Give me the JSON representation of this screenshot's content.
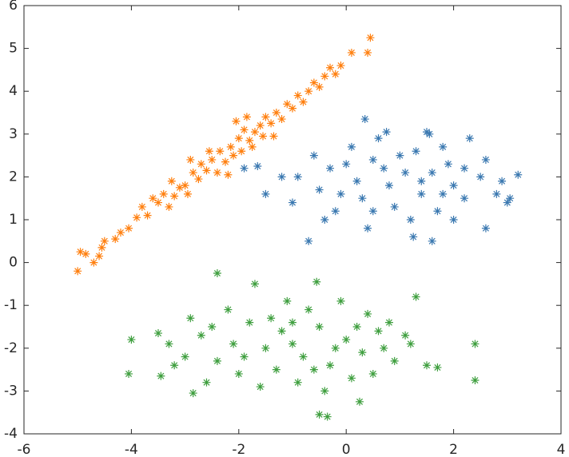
{
  "chart_data": {
    "type": "scatter",
    "xlim": [
      -6,
      4
    ],
    "ylim": [
      -4,
      6
    ],
    "xticks": [
      -6,
      -4,
      -2,
      0,
      2,
      4
    ],
    "yticks": [
      -4,
      -3,
      -2,
      -1,
      0,
      1,
      2,
      3,
      4,
      5,
      6
    ],
    "marker": "asterisk",
    "series": [
      {
        "color": "#3a78b0",
        "x": [
          0.5,
          0.8,
          1.1,
          1.4,
          0.2,
          -0.3,
          -0.5,
          1.9,
          2.2,
          2.5,
          1.7,
          0.9,
          0.3,
          -0.2,
          -0.6,
          -0.9,
          0.1,
          0.6,
          1.3,
          1.0,
          1.6,
          2.0,
          2.8,
          3.0,
          2.6,
          2.3,
          1.8,
          -1.2,
          -1.5,
          -1.9,
          -1.65,
          -0.7,
          0.35,
          3.2,
          2.6,
          1.6,
          1.25,
          0.4,
          1.5,
          0.75,
          1.55,
          -0.4,
          0.0,
          0.5,
          1.2,
          2.0,
          2.9,
          3.05,
          0.7,
          1.4,
          -0.1,
          -1.0,
          2.2,
          1.8
        ],
        "y": [
          2.4,
          1.8,
          2.1,
          1.6,
          1.9,
          2.2,
          1.7,
          2.3,
          1.5,
          2.0,
          1.2,
          1.3,
          1.5,
          1.2,
          2.5,
          2.0,
          2.7,
          2.9,
          2.6,
          2.5,
          2.1,
          1.8,
          1.6,
          1.4,
          2.4,
          2.9,
          2.7,
          2.0,
          1.6,
          2.2,
          2.25,
          0.5,
          3.35,
          2.05,
          0.8,
          0.5,
          0.6,
          0.8,
          3.05,
          3.05,
          3.0,
          1.0,
          2.3,
          1.2,
          1.0,
          1.0,
          1.9,
          1.5,
          2.2,
          1.9,
          1.6,
          1.4,
          2.2,
          1.6
        ]
      },
      {
        "color": "#ff7f0e",
        "x": [
          -5.0,
          -4.95,
          -4.85,
          -4.7,
          -4.6,
          -4.55,
          -4.5,
          -4.3,
          -4.2,
          -4.05,
          -3.9,
          -3.8,
          -3.7,
          -3.6,
          -3.5,
          -3.4,
          -3.3,
          -3.2,
          -3.1,
          -3.0,
          -2.95,
          -2.85,
          -2.75,
          -2.7,
          -2.6,
          -2.5,
          -2.4,
          -2.35,
          -2.25,
          -2.15,
          -2.1,
          -2.0,
          -1.95,
          -1.9,
          -1.8,
          -1.7,
          -1.6,
          -1.55,
          -1.5,
          -1.4,
          -1.3,
          -1.2,
          -1.1,
          -1.0,
          -0.9,
          -0.8,
          -0.7,
          -0.6,
          -0.5,
          -0.4,
          -0.3,
          -0.2,
          -0.1,
          0.1,
          0.4,
          0.45,
          -2.2,
          -2.55,
          -1.75,
          -3.25,
          -2.9,
          -1.35,
          -2.05,
          -1.85
        ],
        "y": [
          -0.2,
          0.25,
          0.2,
          0.0,
          0.15,
          0.35,
          0.5,
          0.55,
          0.7,
          0.8,
          1.05,
          1.3,
          1.1,
          1.5,
          1.4,
          1.6,
          1.3,
          1.55,
          1.75,
          1.8,
          1.6,
          2.1,
          1.95,
          2.3,
          2.15,
          2.4,
          2.1,
          2.6,
          2.35,
          2.7,
          2.5,
          2.9,
          2.6,
          3.1,
          2.85,
          3.05,
          3.2,
          2.95,
          3.4,
          3.25,
          3.5,
          3.35,
          3.7,
          3.6,
          3.9,
          3.75,
          4.0,
          4.2,
          4.1,
          4.35,
          4.55,
          4.4,
          4.6,
          4.9,
          4.9,
          5.25,
          2.05,
          2.6,
          2.7,
          1.9,
          2.4,
          2.95,
          3.3,
          3.4
        ]
      },
      {
        "color": "#3f9f3f",
        "x": [
          -4.0,
          -4.05,
          -3.5,
          -3.45,
          2.4,
          2.4,
          1.3,
          -2.4,
          -0.5,
          -0.35,
          0.25,
          -2.85,
          -1.0,
          -0.8,
          -1.2,
          -1.5,
          -0.5,
          -0.3,
          0.0,
          0.3,
          0.6,
          0.9,
          1.2,
          1.5,
          1.7,
          -1.8,
          -2.1,
          -2.4,
          -2.7,
          -3.0,
          -3.2,
          -2.6,
          -2.0,
          -1.6,
          -1.3,
          -0.9,
          -0.4,
          0.1,
          0.5,
          -0.7,
          -1.1,
          -1.7,
          -2.2,
          -2.9,
          -0.1,
          0.4,
          0.8,
          1.1,
          0.7,
          -1.4,
          -0.2,
          -0.6,
          -1.9,
          -2.5,
          -1.0,
          0.2,
          -3.3,
          -0.55
        ],
        "y": [
          -1.8,
          -2.6,
          -1.65,
          -2.65,
          -1.9,
          -2.75,
          -0.8,
          -0.25,
          -3.55,
          -3.6,
          -3.25,
          -3.05,
          -1.9,
          -2.2,
          -1.6,
          -2.0,
          -1.5,
          -2.4,
          -1.8,
          -2.1,
          -1.6,
          -2.3,
          -1.9,
          -2.4,
          -2.45,
          -1.4,
          -1.9,
          -2.3,
          -1.7,
          -2.2,
          -2.4,
          -2.8,
          -2.6,
          -2.9,
          -2.5,
          -2.8,
          -3.0,
          -2.7,
          -2.6,
          -1.1,
          -0.9,
          -0.5,
          -1.1,
          -1.3,
          -0.9,
          -1.2,
          -1.4,
          -1.7,
          -2.0,
          -1.3,
          -2.0,
          -2.5,
          -2.2,
          -1.5,
          -1.4,
          -1.5,
          -1.9,
          -0.45
        ]
      }
    ]
  }
}
